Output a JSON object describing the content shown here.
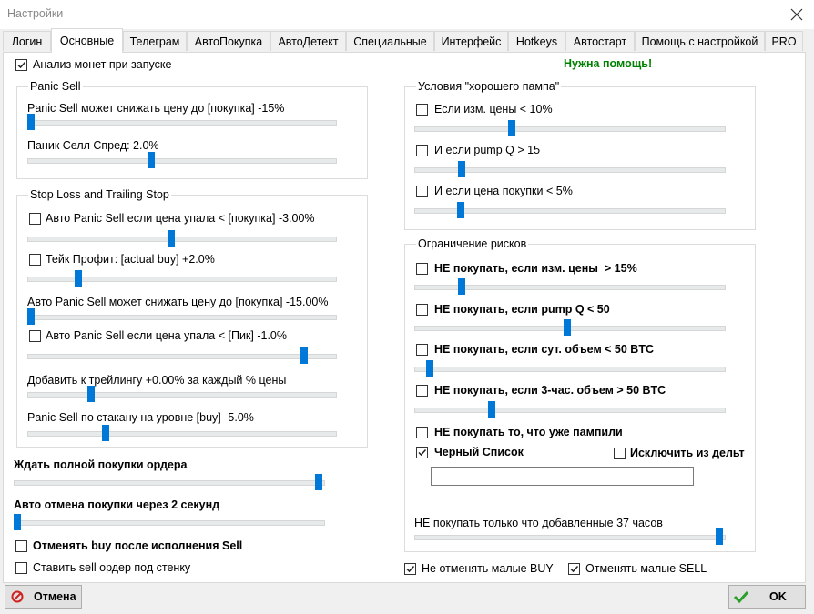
{
  "window_title": "Настройки",
  "tabs": [
    "Логин",
    "Основные",
    "Телеграм",
    "АвтоПокупка",
    "АвтоДетект",
    "Специальные",
    "Интерфейс",
    "Hotkeys",
    "Автостарт",
    "Помощь с настройкой",
    "PRO"
  ],
  "active_tab": 1,
  "analyze_on_start": {
    "text": "Анализ монет при запуске",
    "checked": true
  },
  "help_link": "Нужна помощь!",
  "panic_sell": {
    "title": "Panic Sell",
    "items": [
      {
        "text": "Panic Sell может снижать цену до [покупка] -15%"
      },
      {
        "text": "Паник Селл Спред: 2.0%"
      }
    ]
  },
  "stop_loss": {
    "title": "Stop Loss and Trailing Stop",
    "items": [
      {
        "text": "Авто Panic Sell если цена упала < [покупка] -3.00%",
        "checked": false
      },
      {
        "text": "Тейк Профит: [actual buy] +2.0%",
        "checked": false
      },
      {
        "text": "Авто Panic Sell может снижать цену до [покупка] -15.00%"
      },
      {
        "text": "Авто Panic Sell если цена упала < [Пик] -1.0%",
        "checked": false
      },
      {
        "text": "Добавить к трейлингу +0.00% за каждый % цены"
      },
      {
        "text": "Panic Sell по стакану на уровне [buy] -5.0%"
      }
    ]
  },
  "wait_full_buy": {
    "text": "Ждать полной покупки ордера"
  },
  "auto_cancel": {
    "text": "Авто отмена покупки через 2 секунд"
  },
  "cancel_buy_after_sell": {
    "text": "Отменять buy после исполнения Sell",
    "checked": false
  },
  "sell_under_wall": {
    "text": "Ставить sell ордер под стенку",
    "checked": false
  },
  "good_pump": {
    "title": "Условия \"хорошего пампа\"",
    "items": [
      {
        "text": "Если изм. цены < 10%",
        "checked": false
      },
      {
        "text": "И если pump Q > 15",
        "checked": false
      },
      {
        "text": "И если цена покупки < 5%",
        "checked": false
      }
    ]
  },
  "risk_limits": {
    "title": "Ограничение рисков",
    "items": [
      {
        "text": "НЕ покупать, если изм. цены  > 15%",
        "checked": false
      },
      {
        "text": "НЕ покупать, если pump Q < 50",
        "checked": false
      },
      {
        "text": "НЕ покупать, если сут. объем < 50 BTC",
        "checked": false
      },
      {
        "text": "НЕ покупать, если 3-час. объем > 50 BTC",
        "checked": false
      },
      {
        "text": "НЕ покупать то, что уже пампили",
        "checked": false
      },
      {
        "text": "Черный Список",
        "checked": true
      },
      {
        "text": "Исключить из дельт",
        "checked": false
      },
      {
        "text": "НЕ покупать только что добавленные 37 часов"
      }
    ]
  },
  "keep_small_buy": {
    "text": "Не отменять малые BUY",
    "checked": true
  },
  "cancel_small_sell": {
    "text": "Отменять малые SELL",
    "checked": true
  },
  "buttons": {
    "cancel": "Отмена",
    "ok": "OK"
  }
}
